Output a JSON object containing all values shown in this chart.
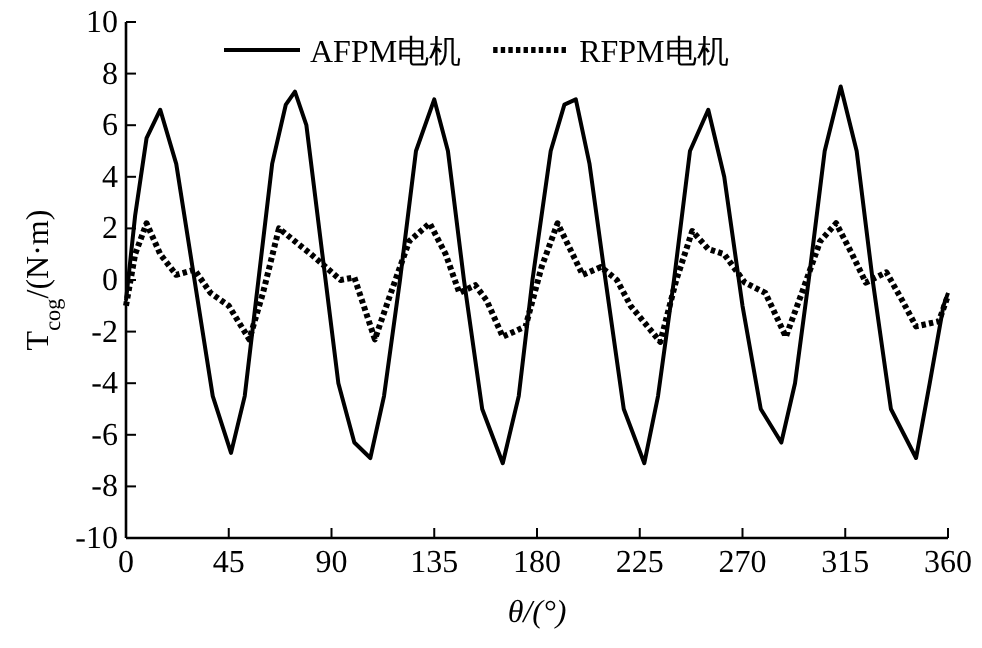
{
  "chart_data": {
    "type": "line",
    "xlabel": "θ/(°)",
    "ylabel": "T$_{cog}$/(N·m)",
    "xlim": [
      0,
      360
    ],
    "xticks": [
      0,
      45,
      90,
      135,
      180,
      225,
      270,
      315,
      360
    ],
    "ylim": [
      -10,
      10
    ],
    "yticks": [
      -10,
      -8,
      -6,
      -4,
      -2,
      0,
      2,
      4,
      6,
      8,
      10
    ],
    "grid": false,
    "legend": "top",
    "series": [
      {
        "name": "AFPM电机",
        "color": "#000000",
        "line_style": "solid",
        "x": [
          0,
          4,
          9,
          15,
          22,
          30,
          38,
          46,
          52,
          58,
          64,
          70,
          74,
          79,
          86,
          93,
          100,
          107,
          113,
          120,
          127,
          135,
          141,
          148,
          156,
          165,
          172,
          178,
          186,
          192,
          197,
          203,
          210,
          218,
          227,
          233,
          240,
          247,
          255,
          262,
          270,
          278,
          287,
          293,
          299,
          306,
          313,
          320,
          327,
          335,
          346,
          352,
          358,
          360
        ],
        "values": [
          -0.8,
          2.5,
          5.5,
          6.6,
          4.5,
          0,
          -4.5,
          -6.7,
          -4.5,
          0,
          4.5,
          6.8,
          7.3,
          6,
          1,
          -4,
          -6.3,
          -6.9,
          -4.5,
          0,
          5,
          7,
          5,
          0,
          -5,
          -7.1,
          -4.5,
          0,
          5,
          6.8,
          7,
          4.5,
          0,
          -5,
          -7.1,
          -4.5,
          0,
          5,
          6.6,
          4,
          -1,
          -5,
          -6.3,
          -4,
          0,
          5,
          7.5,
          5,
          0,
          -5,
          -6.9,
          -4,
          -1,
          -0.5
        ]
      },
      {
        "name": "RFPM电机",
        "color": "#000000",
        "line_style": "dotted",
        "x": [
          0,
          4,
          9,
          15,
          22,
          30,
          37,
          45,
          54,
          60,
          67,
          74,
          81,
          94,
          100,
          109,
          116,
          124,
          133,
          140,
          146,
          153,
          158,
          165,
          175,
          182,
          189,
          200,
          208,
          215,
          221,
          234,
          241,
          248,
          255,
          262,
          271,
          280,
          289,
          296,
          304,
          311,
          318,
          324,
          333,
          340,
          346,
          356,
          360
        ],
        "values": [
          -1,
          1,
          2.2,
          1,
          0.2,
          0.4,
          -0.5,
          -1,
          -2.3,
          -0.5,
          2,
          1.5,
          1,
          0,
          0.1,
          -2.3,
          -0.5,
          1.5,
          2.2,
          1,
          -0.5,
          -0.2,
          -0.8,
          -2.2,
          -1.8,
          0.5,
          2.2,
          0.2,
          0.5,
          0,
          -1,
          -2.4,
          0,
          1.9,
          1.2,
          1,
          -0.1,
          -0.5,
          -2.2,
          -0.5,
          1.5,
          2.2,
          1,
          -0.1,
          0.3,
          -0.8,
          -1.8,
          -1.6,
          -0.6
        ]
      }
    ]
  }
}
